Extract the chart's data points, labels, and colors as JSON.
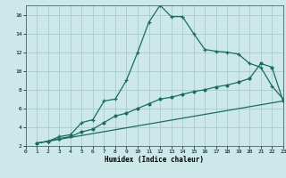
{
  "xlabel": "Humidex (Indice chaleur)",
  "bg_color": "#cce8e8",
  "grid_color": "#aacccc",
  "line_color": "#1a6b60",
  "x_min": 0,
  "x_max": 23,
  "y_min": 2,
  "y_max": 17,
  "series1_x": [
    1,
    2,
    3,
    4,
    5,
    6,
    7,
    8,
    9,
    10,
    11,
    12,
    13,
    14,
    15,
    16,
    17,
    18,
    19,
    20,
    21,
    22,
    23
  ],
  "series1_y": [
    2.3,
    2.5,
    3.0,
    3.2,
    4.5,
    4.8,
    6.8,
    7.0,
    9.0,
    12.0,
    15.2,
    17.0,
    15.8,
    15.8,
    14.0,
    12.3,
    12.1,
    12.0,
    11.8,
    10.8,
    10.4,
    8.4,
    7.0
  ],
  "series2_x": [
    1,
    2,
    3,
    4,
    5,
    6,
    7,
    8,
    9,
    10,
    11,
    12,
    13,
    14,
    15,
    16,
    17,
    18,
    19,
    20,
    21,
    22,
    23
  ],
  "series2_y": [
    2.3,
    2.5,
    2.8,
    3.0,
    3.5,
    3.8,
    4.5,
    5.2,
    5.5,
    6.0,
    6.5,
    7.0,
    7.2,
    7.5,
    7.8,
    8.0,
    8.3,
    8.5,
    8.8,
    9.2,
    10.8,
    10.4,
    6.8
  ],
  "series3_x": [
    1,
    23
  ],
  "series3_y": [
    2.3,
    6.8
  ]
}
